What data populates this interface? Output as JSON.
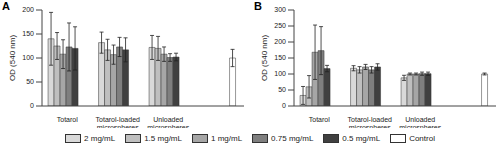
{
  "chart_data": [
    {
      "type": "bar",
      "title": "A",
      "y_label": "OD (540 nm)",
      "categories": [
        "Totarol",
        "Totarol-loaded microspheres",
        "Unloaded microspheres",
        null
      ],
      "ylim": [
        0,
        200
      ],
      "yticks": [
        0,
        50,
        100,
        150,
        200
      ],
      "grid": false,
      "series": [
        {
          "name": "2 mg/mL",
          "color": "#d9d9d9",
          "values": [
            140,
            132,
            122,
            null
          ],
          "errors": [
            55,
            22,
            25,
            null
          ]
        },
        {
          "name": "1.5 mg/mL",
          "color": "#bfbfbf",
          "values": [
            125,
            117,
            120,
            null
          ],
          "errors": [
            28,
            22,
            25,
            null
          ]
        },
        {
          "name": "1 mg/mL",
          "color": "#a6a6a6",
          "values": [
            108,
            107,
            108,
            null
          ],
          "errors": [
            30,
            20,
            15,
            null
          ]
        },
        {
          "name": "0.75 mg/mL",
          "color": "#7f7f7f",
          "values": [
            123,
            123,
            101,
            null
          ],
          "errors": [
            50,
            20,
            8,
            null
          ]
        },
        {
          "name": "0.5 mg/mL",
          "color": "#404040",
          "values": [
            120,
            117,
            102,
            null
          ],
          "errors": [
            45,
            25,
            8,
            null
          ]
        },
        {
          "name": "Control",
          "color": "#ffffff",
          "values": [
            null,
            null,
            null,
            100
          ],
          "errors": [
            null,
            null,
            null,
            18
          ]
        }
      ]
    },
    {
      "type": "bar",
      "title": "B",
      "y_label": "OD (540 nm)",
      "categories": [
        "Totarol",
        "Totarol-loaded microspheres",
        "Unloaded microspheres",
        null
      ],
      "ylim": [
        0,
        300
      ],
      "yticks": [
        0,
        50,
        100,
        150,
        200,
        250,
        300
      ],
      "grid": false,
      "series": [
        {
          "name": "2 mg/mL",
          "color": "#d9d9d9",
          "values": [
            33,
            118,
            88,
            null
          ],
          "errors": [
            28,
            8,
            8,
            null
          ]
        },
        {
          "name": "1.5 mg/mL",
          "color": "#bfbfbf",
          "values": [
            60,
            113,
            100,
            null
          ],
          "errors": [
            35,
            10,
            3,
            null
          ]
        },
        {
          "name": "1 mg/mL",
          "color": "#a6a6a6",
          "values": [
            168,
            122,
            100,
            null
          ],
          "errors": [
            85,
            8,
            3,
            null
          ]
        },
        {
          "name": "0.75 mg/mL",
          "color": "#7f7f7f",
          "values": [
            173,
            113,
            101,
            null
          ],
          "errors": [
            75,
            10,
            5,
            null
          ]
        },
        {
          "name": "0.5 mg/mL",
          "color": "#404040",
          "values": [
            117,
            122,
            101,
            null
          ],
          "errors": [
            10,
            10,
            5,
            null
          ]
        },
        {
          "name": "Control",
          "color": "#ffffff",
          "values": [
            null,
            null,
            null,
            100
          ],
          "errors": [
            null,
            null,
            null,
            3
          ]
        }
      ]
    }
  ]
}
